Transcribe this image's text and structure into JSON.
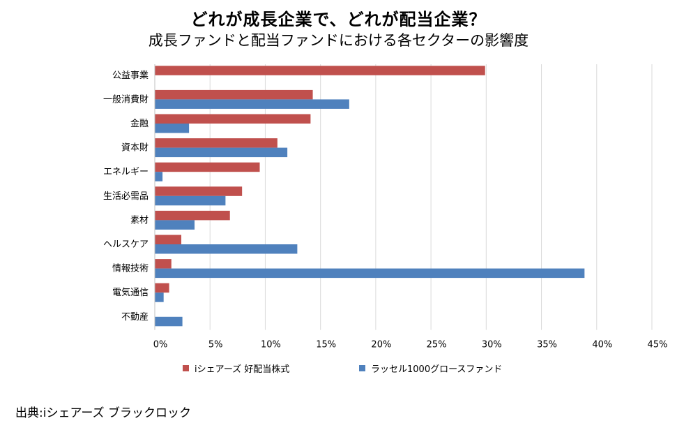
{
  "chart_data": {
    "type": "bar",
    "orientation": "horizontal",
    "title": "どれが成長企業で、どれが配当企業？",
    "subtitle": "成長ファンドと配当ファンドにおける各セクターの影響度",
    "categories": [
      "公益事業",
      "一般消費財",
      "金融",
      "資本財",
      "エネルギー",
      "生活必需品",
      "素材",
      "ヘルスケア",
      "情報技術",
      "電気通信",
      "不動産"
    ],
    "series": [
      {
        "name": "iシェアーズ 好配当株式",
        "color": "#c0504d",
        "values": [
          29.9,
          14.3,
          14.1,
          11.1,
          9.5,
          7.9,
          6.8,
          2.4,
          1.5,
          1.3,
          0
        ]
      },
      {
        "name": "ラッセル1000グロースファンド",
        "color": "#4f81bd",
        "values": [
          0,
          17.6,
          3.1,
          12.0,
          0.7,
          6.4,
          3.6,
          12.9,
          38.9,
          0.8,
          2.5
        ]
      }
    ],
    "xlim": [
      0,
      45
    ],
    "xticks": [
      0,
      5,
      10,
      15,
      20,
      25,
      30,
      35,
      40,
      45
    ],
    "xtick_labels": [
      "0%",
      "5%",
      "10%",
      "15%",
      "20%",
      "25%",
      "30%",
      "35%",
      "40%",
      "45%"
    ],
    "grid": true,
    "legend": "bottom"
  },
  "source": "出典:iシェアーズ ブラックロック"
}
